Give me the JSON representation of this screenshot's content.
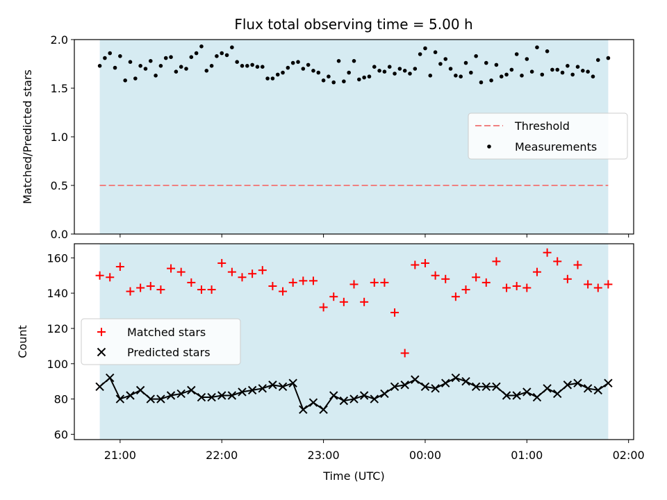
{
  "chart_data": [
    {
      "type": "scatter",
      "title": "Flux total observing time = 5.00 h",
      "xlabel": "",
      "ylabel": "Matched/Predicted stars",
      "ylim": [
        0.0,
        2.0
      ],
      "yticks": [
        "0.0",
        "0.5",
        "1.0",
        "1.5",
        "2.0"
      ],
      "ytick_values": [
        0.0,
        0.5,
        1.0,
        1.5,
        2.0
      ],
      "observing_window": {
        "start": "20:48",
        "end": "01:48",
        "color": "#add8e6"
      },
      "threshold": {
        "name": "Threshold",
        "value": 0.5,
        "color": "#f08080",
        "style": "dashed"
      },
      "series": [
        {
          "name": "Measurements",
          "marker": "dot",
          "color": "#000000",
          "x": [
            "20:48",
            "20:54",
            "21:00",
            "21:06",
            "21:12",
            "21:18",
            "21:24",
            "21:30",
            "21:36",
            "21:42",
            "21:48",
            "21:54",
            "22:00",
            "22:06",
            "22:12",
            "22:18",
            "22:24",
            "22:30",
            "22:36",
            "22:42",
            "22:48",
            "22:54",
            "23:00",
            "23:06",
            "23:12",
            "23:18",
            "23:24",
            "23:30",
            "23:36",
            "23:42",
            "23:48",
            "23:54",
            "00:00",
            "00:06",
            "00:12",
            "00:18",
            "00:24",
            "00:30",
            "00:36",
            "00:42",
            "00:48",
            "00:54",
            "01:00",
            "01:06",
            "01:12",
            "01:18",
            "01:24",
            "01:30",
            "01:36",
            "01:42",
            "01:48",
            "20:51",
            "20:57",
            "21:03",
            "21:09",
            "21:15",
            "21:21",
            "21:27",
            "21:33",
            "21:39",
            "21:45",
            "21:51",
            "21:57",
            "22:03",
            "22:09",
            "22:15",
            "22:21",
            "22:27",
            "22:33",
            "22:39",
            "22:45",
            "22:51",
            "22:57",
            "23:03",
            "23:09",
            "23:15",
            "23:21",
            "23:27",
            "23:33",
            "23:39",
            "23:45",
            "23:51",
            "23:57",
            "00:03",
            "00:09",
            "00:15",
            "00:21",
            "00:27",
            "00:33",
            "00:39",
            "00:45",
            "00:51",
            "00:57",
            "01:03",
            "01:09",
            "01:15",
            "01:21",
            "01:27",
            "01:33",
            "01:39"
          ],
          "values": [
            1.73,
            1.86,
            1.83,
            1.77,
            1.73,
            1.78,
            1.73,
            1.82,
            1.72,
            1.82,
            1.93,
            1.73,
            1.86,
            1.92,
            1.73,
            1.74,
            1.72,
            1.6,
            1.66,
            1.76,
            1.7,
            1.68,
            1.58,
            1.56,
            1.57,
            1.78,
            1.61,
            1.72,
            1.67,
            1.65,
            1.68,
            1.7,
            1.91,
            1.87,
            1.8,
            1.63,
            1.76,
            1.83,
            1.76,
            1.74,
            1.64,
            1.85,
            1.8,
            1.92,
            1.88,
            1.69,
            1.73,
            1.72,
            1.67,
            1.79,
            1.81,
            1.81,
            1.71,
            1.58,
            1.6,
            1.7,
            1.63,
            1.81,
            1.67,
            1.7,
            1.86,
            1.68,
            1.83,
            1.84,
            1.77,
            1.73,
            1.72,
            1.6,
            1.64,
            1.71,
            1.77,
            1.74,
            1.66,
            1.62,
            1.78,
            1.66,
            1.59,
            1.62,
            1.68,
            1.72,
            1.7,
            1.65,
            1.85,
            1.63,
            1.75,
            1.7,
            1.62,
            1.66,
            1.56,
            1.58,
            1.62,
            1.69,
            1.63,
            1.67,
            1.64,
            1.69,
            1.66,
            1.64,
            1.68,
            1.62
          ]
        }
      ],
      "legend": {
        "position": "right",
        "entries": [
          "Threshold",
          "Measurements"
        ]
      }
    },
    {
      "type": "scatter",
      "title": "",
      "xlabel": "Time (UTC)",
      "ylabel": "Count",
      "ylim": [
        57,
        168
      ],
      "yticks": [
        "60",
        "80",
        "100",
        "120",
        "140",
        "160"
      ],
      "ytick_values": [
        60,
        80,
        100,
        120,
        140,
        160
      ],
      "xticks": [
        "21:00",
        "22:00",
        "23:00",
        "00:00",
        "01:00",
        "02:00"
      ],
      "xlim": [
        "20:33",
        "02:03"
      ],
      "observing_window": {
        "start": "20:48",
        "end": "01:48",
        "color": "#add8e6"
      },
      "series": [
        {
          "name": "Matched stars",
          "marker": "plus",
          "color": "#ff0000",
          "x": [
            "20:48",
            "20:54",
            "21:00",
            "21:06",
            "21:12",
            "21:18",
            "21:24",
            "21:30",
            "21:36",
            "21:42",
            "21:48",
            "21:54",
            "22:00",
            "22:06",
            "22:12",
            "22:18",
            "22:24",
            "22:30",
            "22:36",
            "22:42",
            "22:48",
            "22:54",
            "23:00",
            "23:06",
            "23:12",
            "23:18",
            "23:24",
            "23:30",
            "23:36",
            "23:42",
            "23:48",
            "23:54",
            "00:00",
            "00:06",
            "00:12",
            "00:18",
            "00:24",
            "00:30",
            "00:36",
            "00:42",
            "00:48",
            "00:54",
            "01:00",
            "01:06",
            "01:12",
            "01:18",
            "01:24",
            "01:30",
            "01:36",
            "01:42",
            "01:48"
          ],
          "values": [
            150,
            149,
            155,
            141,
            143,
            144,
            142,
            154,
            152,
            146,
            142,
            142,
            157,
            152,
            149,
            151,
            153,
            144,
            141,
            146,
            147,
            147,
            132,
            138,
            135,
            145,
            135,
            146,
            146,
            129,
            106,
            156,
            157,
            150,
            148,
            138,
            142,
            149,
            146,
            158,
            143,
            144,
            143,
            152,
            163,
            158,
            148,
            156,
            145,
            143,
            145
          ]
        },
        {
          "name": "Predicted stars",
          "marker": "x",
          "color": "#000000",
          "connected": true,
          "x": [
            "20:48",
            "20:54",
            "21:00",
            "21:06",
            "21:12",
            "21:18",
            "21:24",
            "21:30",
            "21:36",
            "21:42",
            "21:48",
            "21:54",
            "22:00",
            "22:06",
            "22:12",
            "22:18",
            "22:24",
            "22:30",
            "22:36",
            "22:42",
            "22:48",
            "22:54",
            "23:00",
            "23:06",
            "23:12",
            "23:18",
            "23:24",
            "23:30",
            "23:36",
            "23:42",
            "23:48",
            "23:54",
            "00:00",
            "00:06",
            "00:12",
            "00:18",
            "00:24",
            "00:30",
            "00:36",
            "00:42",
            "00:48",
            "00:54",
            "01:00",
            "01:06",
            "01:12",
            "01:18",
            "01:24",
            "01:30",
            "01:36",
            "01:42",
            "01:48"
          ],
          "values": [
            87,
            92,
            80,
            82,
            85,
            80,
            80,
            82,
            83,
            85,
            81,
            81,
            82,
            82,
            84,
            85,
            86,
            88,
            87,
            89,
            74,
            78,
            74,
            82,
            79,
            80,
            82,
            80,
            83,
            87,
            88,
            91,
            87,
            86,
            89,
            92,
            90,
            87,
            87,
            87,
            82,
            82,
            84,
            81,
            86,
            83,
            88,
            89,
            86,
            85,
            89
          ]
        }
      ],
      "legend": {
        "position": "left",
        "entries": [
          "Matched stars",
          "Predicted stars"
        ]
      }
    }
  ]
}
